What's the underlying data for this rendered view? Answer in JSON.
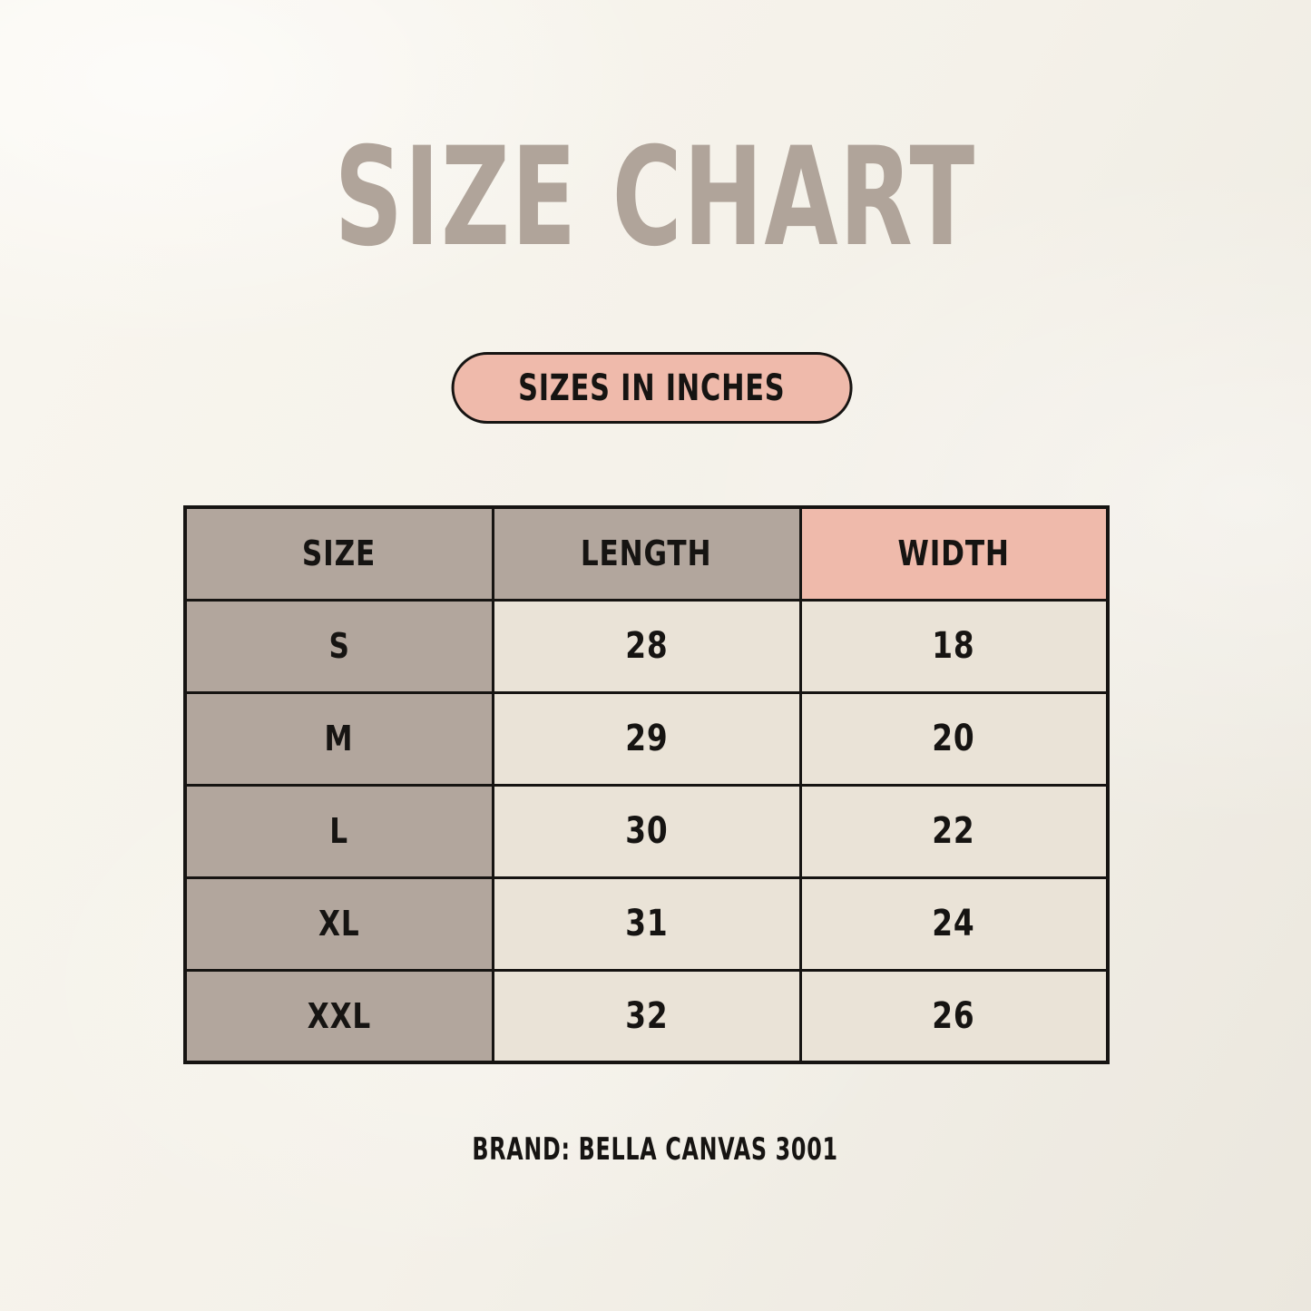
{
  "header": {
    "title": "SIZE CHART"
  },
  "badge": {
    "label": "SIZES IN INCHES"
  },
  "footer": {
    "note": "BRAND: BELLA CANVAS 3001"
  },
  "colors": {
    "bg": "#f4f1e9",
    "title": "#b0a49a",
    "taupe": "#b2a69d",
    "pink": "#efbaab",
    "cream": "#eae3d7",
    "line": "#161412"
  },
  "chart_data": {
    "type": "table",
    "title": "SIZE CHART",
    "unit_note": "SIZES IN INCHES",
    "columns": [
      "SIZE",
      "LENGTH",
      "WIDTH"
    ],
    "rows": [
      [
        "S",
        "28",
        "18"
      ],
      [
        "M",
        "29",
        "20"
      ],
      [
        "L",
        "30",
        "22"
      ],
      [
        "XL",
        "31",
        "24"
      ],
      [
        "XXL",
        "32",
        "26"
      ]
    ],
    "footer": "BRAND: BELLA CANVAS 3001"
  }
}
